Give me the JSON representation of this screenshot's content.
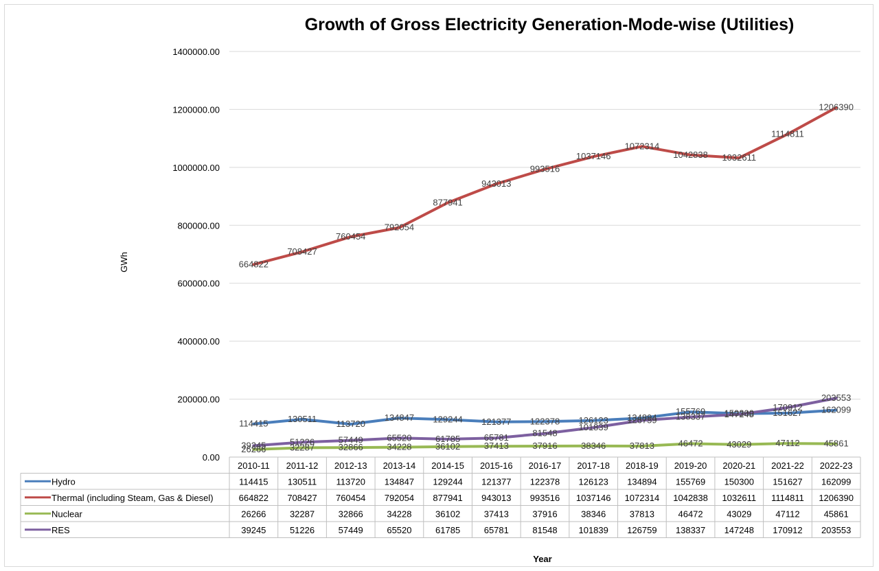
{
  "chart_data": {
    "type": "line",
    "title": "Growth of Gross Electricity Generation-Mode-wise (Utilities)",
    "xlabel": "Year",
    "ylabel": "GWh",
    "ylim": [
      0,
      1400000
    ],
    "y_ticks": [
      "0.00",
      "200000.00",
      "400000.00",
      "600000.00",
      "800000.00",
      "1000000.00",
      "1200000.00",
      "1400000.00"
    ],
    "grid": true,
    "legend": "data-table",
    "categories": [
      "2010-11",
      "2011-12",
      "2012-13",
      "2013-14",
      "2014-15",
      "2015-16",
      "2016-17",
      "2017-18",
      "2018-19",
      "2019-20",
      "2020-21",
      "2021-22",
      "2022-23"
    ],
    "series": [
      {
        "name": "Hydro",
        "color": "#4a7ebb",
        "values": [
          114415,
          130511,
          113720,
          134847,
          129244,
          121377,
          122378,
          126123,
          134894,
          155769,
          150300,
          151627,
          162099
        ]
      },
      {
        "name": "Thermal (including Steam, Gas & Diesel)",
        "color": "#be4b48",
        "values": [
          664822,
          708427,
          760454,
          792054,
          877941,
          943013,
          993516,
          1037146,
          1072314,
          1042838,
          1032611,
          1114811,
          1206390
        ]
      },
      {
        "name": "Nuclear",
        "color": "#98b954",
        "values": [
          26266,
          32287,
          32866,
          34228,
          36102,
          37413,
          37916,
          38346,
          37813,
          46472,
          43029,
          47112,
          45861
        ]
      },
      {
        "name": "RES",
        "color": "#7d60a0",
        "values": [
          39245,
          51226,
          57449,
          65520,
          61785,
          65781,
          81548,
          101839,
          126759,
          138337,
          147248,
          170912,
          203553
        ]
      }
    ]
  }
}
